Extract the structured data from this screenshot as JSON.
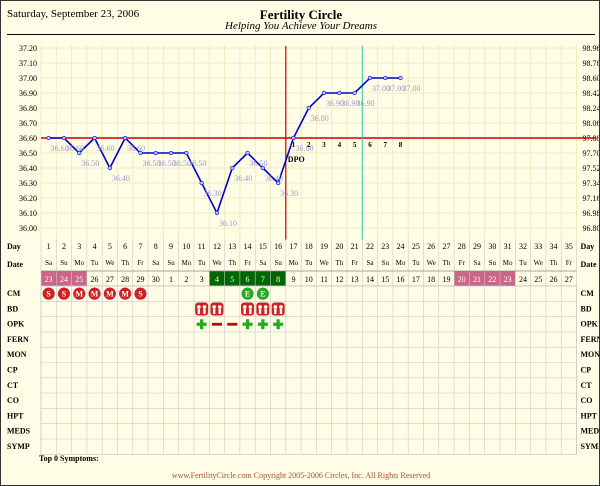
{
  "header": {
    "date": "Saturday, September 23, 2006",
    "title": "Fertility Circle",
    "subtitle": "Helping You Achieve Your Dreams"
  },
  "footer": {
    "text": "www.FertilityCircle.com Copyright 2005-2006 Circles, Inc. All Rights Reserved"
  },
  "symptoms_label": "Top 0 Symptoms:",
  "colors": {
    "temp_line": "#0000cc",
    "temp_marker": "#aaccff",
    "temp_label": "#9999cc",
    "coverline": "#cc0000",
    "ovulation_line": "#cc0000",
    "cycle_line": "#33ccaa",
    "cycle_band": "#cc6688",
    "fertile_band": "#006600",
    "cm_marker": "#cc2222",
    "cm_egg": "#22aa22",
    "opk_pos": "#22aa22",
    "opk_neg": "#cc0000",
    "bd_fill": "#cc2222",
    "grid_bg": "#fffde6",
    "grid_line": "#dddddd"
  },
  "chart_data": {
    "type": "line",
    "ylim_c": [
      36.0,
      37.2
    ],
    "y_ticks_c": [
      "37.20",
      "37.10",
      "37.00",
      "36.90",
      "36.80",
      "36.70",
      "36.60",
      "36.50",
      "36.40",
      "36.30",
      "36.20",
      "36.10",
      "36.00"
    ],
    "y_ticks_f": [
      "98.96",
      "98.78",
      "98.60",
      "98.42",
      "98.24",
      "98.06",
      "97.88",
      "97.70",
      "97.52",
      "97.34",
      "97.16",
      "96.98",
      "96.80"
    ],
    "coverline": 36.6,
    "ovulation_day": 16,
    "cycle_marker_day": 21,
    "dpo_label": "DPO",
    "dpo_numbers": [
      "1",
      "2",
      "3",
      "4",
      "5",
      "6",
      "7",
      "8"
    ],
    "temps": [
      {
        "day": 1,
        "temp": 36.6,
        "label": "36.60"
      },
      {
        "day": 2,
        "temp": 36.6,
        "label": "36.60"
      },
      {
        "day": 3,
        "temp": 36.5,
        "label": "36.50"
      },
      {
        "day": 4,
        "temp": 36.6,
        "label": "36.60"
      },
      {
        "day": 5,
        "temp": 36.4,
        "label": "36.40"
      },
      {
        "day": 6,
        "temp": 36.6,
        "label": "36.60"
      },
      {
        "day": 7,
        "temp": 36.5,
        "label": "36.50"
      },
      {
        "day": 8,
        "temp": 36.5,
        "label": "36.50"
      },
      {
        "day": 9,
        "temp": 36.5,
        "label": "36.50"
      },
      {
        "day": 10,
        "temp": 36.5,
        "label": "36.50"
      },
      {
        "day": 11,
        "temp": 36.3,
        "label": "36.30"
      },
      {
        "day": 12,
        "temp": 36.1,
        "label": "36.10"
      },
      {
        "day": 13,
        "temp": 36.4,
        "label": "36.40"
      },
      {
        "day": 14,
        "temp": 36.5,
        "label": "36.50"
      },
      {
        "day": 15,
        "temp": 36.4,
        "label": "36.40"
      },
      {
        "day": 16,
        "temp": 36.3,
        "label": "36.30"
      },
      {
        "day": 17,
        "temp": 36.6,
        "label": "36.60"
      },
      {
        "day": 18,
        "temp": 36.8,
        "label": "36.80"
      },
      {
        "day": 19,
        "temp": 36.9,
        "label": "36.90"
      },
      {
        "day": 20,
        "temp": 36.9,
        "label": "36.90"
      },
      {
        "day": 21,
        "temp": 36.9,
        "label": "36.90"
      },
      {
        "day": 22,
        "temp": 37.0,
        "label": "37.00"
      },
      {
        "day": 23,
        "temp": 37.0,
        "label": "37.00"
      },
      {
        "day": 24,
        "temp": 37.0,
        "label": "37.00"
      }
    ],
    "days": [
      "1",
      "2",
      "3",
      "4",
      "5",
      "6",
      "7",
      "8",
      "9",
      "10",
      "11",
      "12",
      "13",
      "14",
      "15",
      "16",
      "17",
      "18",
      "19",
      "20",
      "21",
      "22",
      "23",
      "24",
      "25",
      "26",
      "27",
      "28",
      "29",
      "30",
      "31",
      "32",
      "33",
      "34",
      "35"
    ],
    "weekdays": [
      "Sa",
      "Su",
      "Mo",
      "Tu",
      "We",
      "Th",
      "Fr",
      "Sa",
      "Su",
      "Mo",
      "Tu",
      "We",
      "Th",
      "Fr",
      "Sa",
      "Su",
      "Mo",
      "Tu",
      "We",
      "Th",
      "Fr",
      "Sa",
      "Su",
      "Mo",
      "Tu",
      "We",
      "Th",
      "Fr",
      "Sa",
      "Su",
      "Mo",
      "Tu",
      "We",
      "Th",
      "Fr"
    ],
    "dates": [
      "23",
      "24",
      "25",
      "26",
      "27",
      "28",
      "29",
      "30",
      "1",
      "2",
      "3",
      "4",
      "5",
      "6",
      "7",
      "8",
      "9",
      "10",
      "11",
      "12",
      "13",
      "14",
      "15",
      "16",
      "17",
      "18",
      "19",
      "20",
      "21",
      "22",
      "23",
      "24",
      "25",
      "26",
      "27"
    ],
    "date_highlight": {
      "cycle": [
        1,
        2,
        3,
        28,
        29,
        30,
        31
      ],
      "fertile": [
        12,
        13,
        14,
        15,
        16
      ]
    },
    "row_labels": [
      "CM",
      "BD",
      "OPK",
      "FERN",
      "MON",
      "CP",
      "CT",
      "CO",
      "HPT",
      "MEDS",
      "SYMP"
    ],
    "row_label_day": "Day",
    "row_label_date": "Date",
    "cm": [
      {
        "day": 1,
        "code": "S"
      },
      {
        "day": 2,
        "code": "S"
      },
      {
        "day": 3,
        "code": "M"
      },
      {
        "day": 4,
        "code": "M"
      },
      {
        "day": 5,
        "code": "M"
      },
      {
        "day": 6,
        "code": "M"
      },
      {
        "day": 7,
        "code": "S"
      },
      {
        "day": 14,
        "code": "E"
      },
      {
        "day": 15,
        "code": "E"
      }
    ],
    "bd_days": [
      11,
      12,
      14,
      15,
      16
    ],
    "opk": [
      {
        "day": 11,
        "result": "positive"
      },
      {
        "day": 12,
        "result": "negative"
      },
      {
        "day": 13,
        "result": "negative"
      },
      {
        "day": 14,
        "result": "positive"
      },
      {
        "day": 15,
        "result": "positive"
      },
      {
        "day": 16,
        "result": "positive"
      }
    ]
  }
}
